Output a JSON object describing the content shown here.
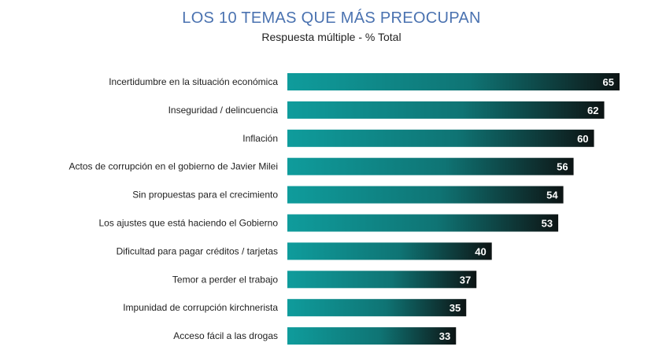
{
  "chart_data": {
    "type": "bar",
    "orientation": "horizontal",
    "title": "LOS 10 TEMAS QUE MÁS PREOCUPAN",
    "subtitle": "Respuesta múltiple - % Total",
    "xlabel": "",
    "ylabel": "",
    "xlim": [
      0,
      65
    ],
    "grid": false,
    "categories": [
      "Incertidumbre en la situación económica",
      "Inseguridad / delincuencia",
      "Inflación",
      "Actos de corrupción en el gobierno de Javier Milei",
      "Sin propuestas para el crecimiento",
      "Los ajustes que está haciendo el Gobierno",
      "Dificultad para pagar créditos / tarjetas",
      "Temor a perder el trabajo",
      "Impunidad de corrupción kirchnerista",
      "Acceso fácil a las drogas"
    ],
    "values": [
      65,
      62,
      60,
      56,
      54,
      53,
      40,
      37,
      35,
      33
    ]
  },
  "colors": {
    "title": "#4a72b0",
    "bar_start": "#0f9c9c",
    "bar_end": "#0d1414",
    "value_text": "#ffffff"
  }
}
